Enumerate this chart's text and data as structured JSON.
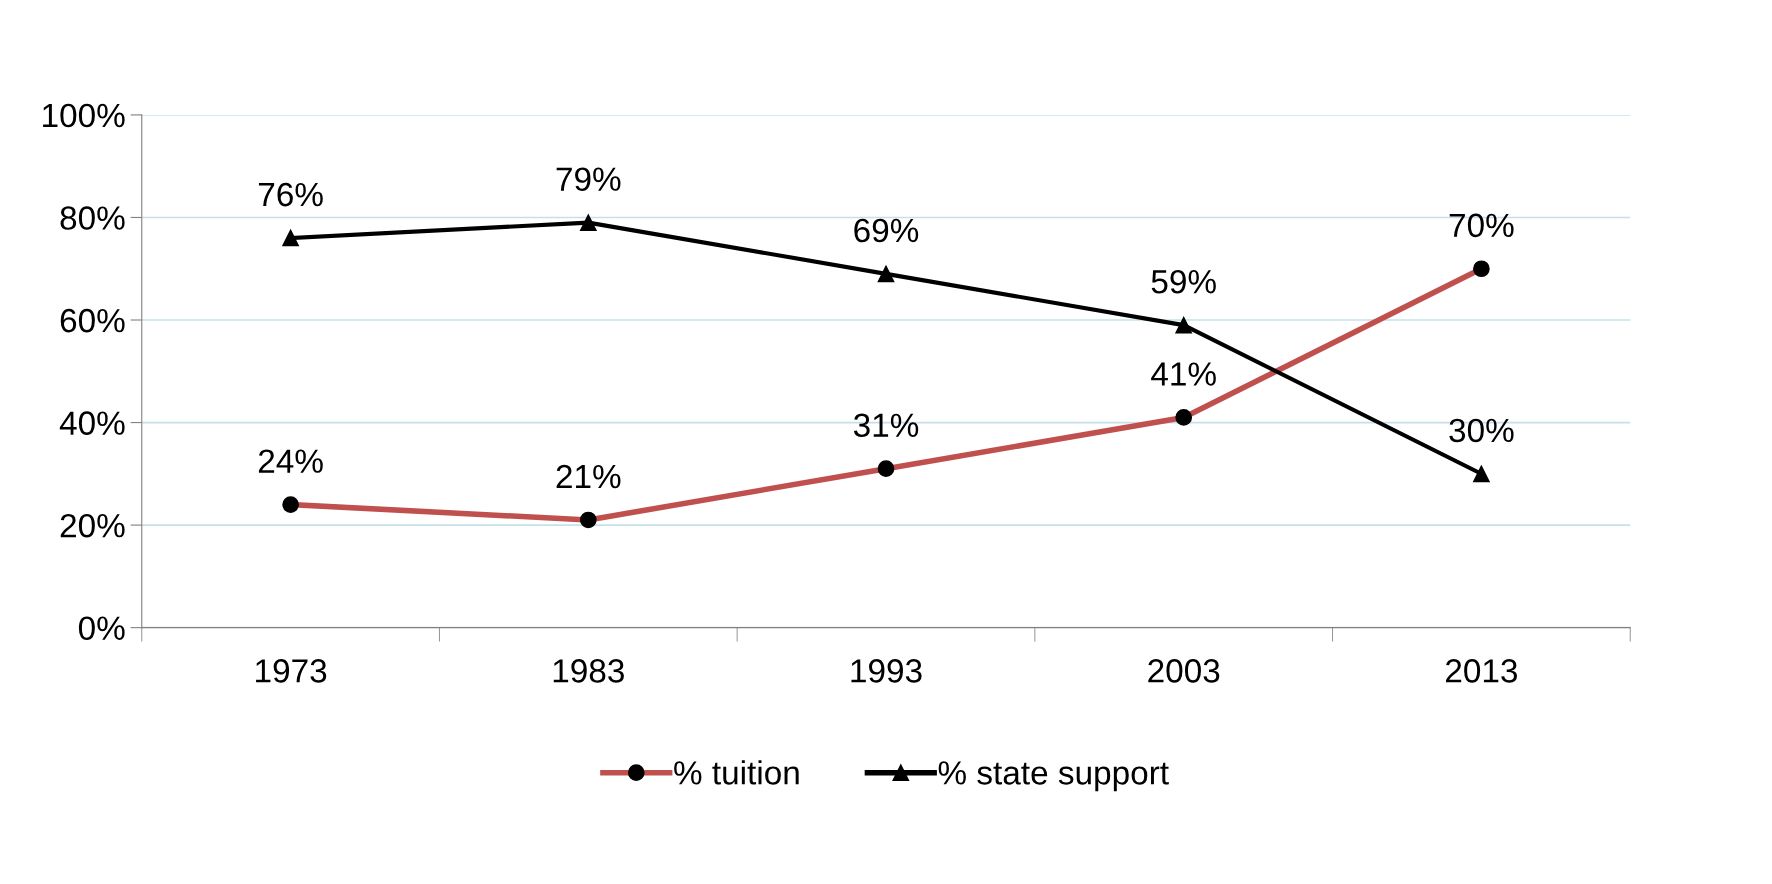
{
  "chart_data": {
    "type": "line",
    "categories": [
      "1973",
      "1983",
      "1993",
      "2003",
      "2013"
    ],
    "series": [
      {
        "name": "% tuition",
        "color": "#c0504d",
        "marker": "circle",
        "values": [
          24,
          21,
          31,
          41,
          70
        ],
        "value_labels": [
          "24%",
          "21%",
          "31%",
          "41%",
          "70%"
        ]
      },
      {
        "name": "% state support",
        "color": "#000000",
        "marker": "triangle",
        "values": [
          76,
          79,
          69,
          59,
          30
        ],
        "value_labels": [
          "76%",
          "79%",
          "69%",
          "59%",
          "30%"
        ]
      }
    ],
    "ylim": [
      0,
      100
    ],
    "yticks": [
      {
        "value": 0,
        "label": "0%"
      },
      {
        "value": 20,
        "label": "20%"
      },
      {
        "value": 40,
        "label": "40%"
      },
      {
        "value": 60,
        "label": "60%"
      },
      {
        "value": 80,
        "label": "80%"
      },
      {
        "value": 100,
        "label": "100%"
      }
    ],
    "grid": "y",
    "legend": "bottom",
    "line_style": "solid"
  }
}
